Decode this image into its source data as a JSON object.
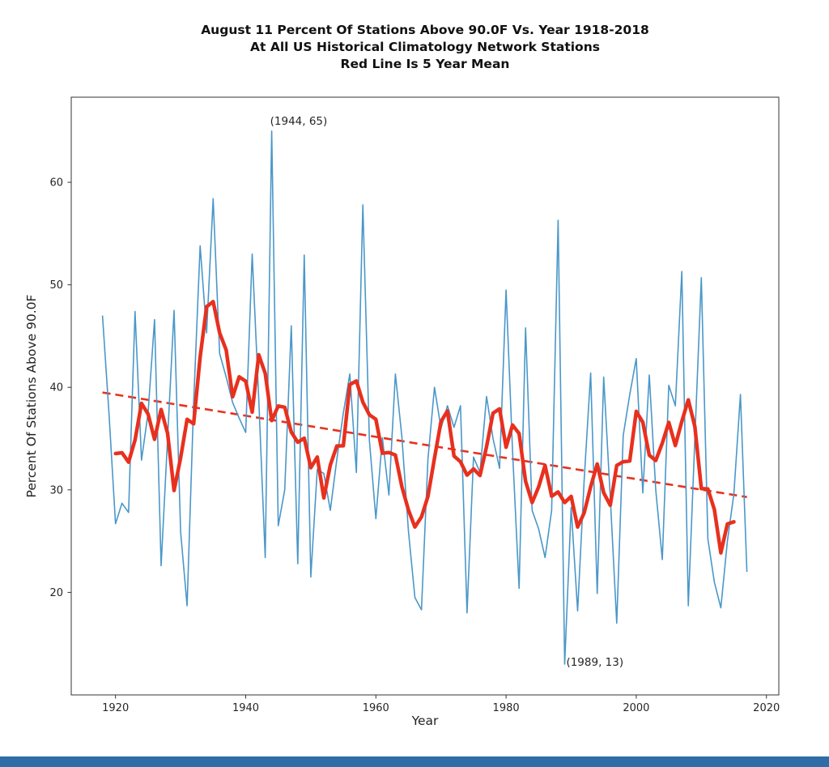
{
  "page": {
    "footer_bar_color": "#2f6da8",
    "background": "#ffffff"
  },
  "chart_data": {
    "type": "line",
    "title_lines": [
      "August 11 Percent Of Stations Above 90.0F Vs. Year 1918-2018",
      "At All US Historical Climatology Network Stations",
      "Red Line Is 5 Year Mean"
    ],
    "xlabel": "Year",
    "ylabel": "Percent Of Stations Above 90.0F",
    "x_ticks": [
      1920,
      1940,
      1960,
      1980,
      2000,
      2020
    ],
    "y_ticks": [
      20,
      30,
      40,
      50,
      60
    ],
    "xlim": [
      1913.2,
      2021.9
    ],
    "ylim": [
      10.0,
      68.3
    ],
    "grid": false,
    "legend": "none",
    "axis_color": "#333333",
    "tick_label_color": "#262626",
    "series": [
      {
        "name": "annual-percent-above-90F",
        "color": "#4a97c9",
        "line_width": 1.6,
        "years": [
          1918,
          1919,
          1920,
          1921,
          1922,
          1923,
          1924,
          1925,
          1926,
          1927,
          1928,
          1929,
          1930,
          1931,
          1932,
          1933,
          1934,
          1935,
          1936,
          1937,
          1938,
          1939,
          1940,
          1941,
          1942,
          1943,
          1944,
          1945,
          1946,
          1947,
          1948,
          1949,
          1950,
          1951,
          1952,
          1953,
          1954,
          1955,
          1956,
          1957,
          1958,
          1959,
          1960,
          1961,
          1962,
          1963,
          1964,
          1965,
          1966,
          1967,
          1968,
          1969,
          1970,
          1971,
          1972,
          1973,
          1974,
          1975,
          1976,
          1977,
          1978,
          1979,
          1980,
          1981,
          1982,
          1983,
          1984,
          1985,
          1986,
          1987,
          1988,
          1989,
          1990,
          1991,
          1992,
          1993,
          1994,
          1995,
          1996,
          1997,
          1998,
          1999,
          2000,
          2001,
          2002,
          2003,
          2004,
          2005,
          2006,
          2007,
          2008,
          2009,
          2010,
          2011,
          2012,
          2013,
          2014,
          2015,
          2016,
          2017
        ],
        "values": [
          47.0,
          37.5,
          26.7,
          28.7,
          27.8,
          47.4,
          32.9,
          37.5,
          46.6,
          22.6,
          35.0,
          47.5,
          25.9,
          18.7,
          38.5,
          53.8,
          45.3,
          58.4,
          43.3,
          41.0,
          38.5,
          37.0,
          35.6,
          53.0,
          38.9,
          23.4,
          65.0,
          26.5,
          30.0,
          46.0,
          22.8,
          52.9,
          21.5,
          32.0,
          31.6,
          28.0,
          33.0,
          37.5,
          41.3,
          31.7,
          57.8,
          34.8,
          27.2,
          35.1,
          29.5,
          41.3,
          35.1,
          26.0,
          19.5,
          18.3,
          33.0,
          40.0,
          36.0,
          38.2,
          36.1,
          38.2,
          18.0,
          33.2,
          31.7,
          39.1,
          35.0,
          32.1,
          49.5,
          33.8,
          20.4,
          45.8,
          28.0,
          26.2,
          23.4,
          28.0,
          56.3,
          13.0,
          28.3,
          18.2,
          31.0,
          41.4,
          19.9,
          41.0,
          29.3,
          17.0,
          35.3,
          39.3,
          42.8,
          29.7,
          41.2,
          30.0,
          23.2,
          40.2,
          38.2,
          51.3,
          18.7,
          35.0,
          50.7,
          25.2,
          21.0,
          18.5,
          25.0,
          29.6,
          39.3,
          22.0
        ]
      },
      {
        "name": "five-year-mean",
        "derived_from": "annual-percent-above-90F",
        "derivation": "centered-5-year-mean-full-window",
        "color": "#e8301e",
        "line_width": 4.5
      },
      {
        "name": "linear-trend",
        "style": "dashed",
        "color": "#e8301e",
        "line_width": 2.6,
        "from": {
          "year": 1918,
          "value": 39.5
        },
        "to": {
          "year": 2017,
          "value": 29.3
        }
      }
    ],
    "annotations": [
      {
        "text": "(1944, 65)",
        "year": 1944,
        "value": 65,
        "dx": -2,
        "dy": -8
      },
      {
        "text": "(1989, 13)",
        "year": 1989,
        "value": 13,
        "dx": 2,
        "dy": 2
      }
    ]
  }
}
